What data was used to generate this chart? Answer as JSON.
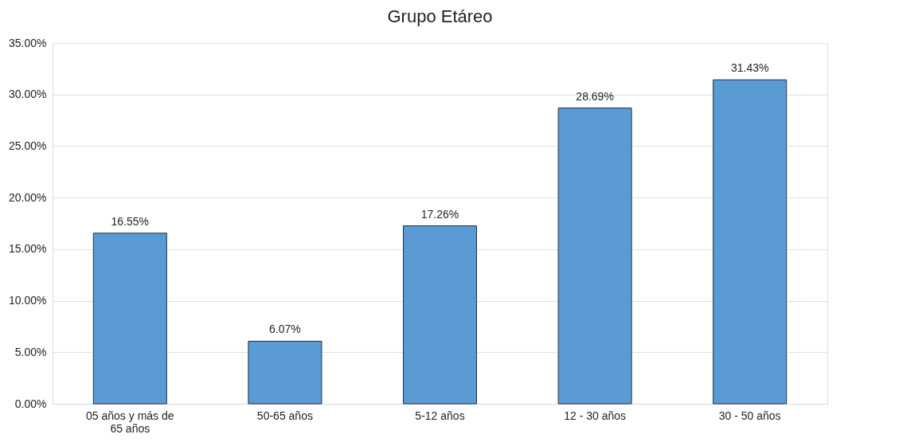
{
  "chart_data": {
    "type": "bar",
    "title": "Grupo Etáreo",
    "categories": [
      "05 años y más  de\n65 años",
      "50-65 años",
      "5-12 años",
      "12 - 30 años",
      "30 - 50 años"
    ],
    "values": [
      16.55,
      6.07,
      17.26,
      28.69,
      31.43
    ],
    "value_labels": [
      "16.55%",
      "6.07%",
      "17.26%",
      "28.69%",
      "31.43%"
    ],
    "color": "#5b9bd5",
    "ylim": [
      0,
      35
    ],
    "yticks": [
      {
        "value": 0,
        "label": "0.00%"
      },
      {
        "value": 5,
        "label": "5.00%"
      },
      {
        "value": 10,
        "label": "10.00%"
      },
      {
        "value": 15,
        "label": "15.00%"
      },
      {
        "value": 20,
        "label": "20.00%"
      },
      {
        "value": 25,
        "label": "25.00%"
      },
      {
        "value": 30,
        "label": "30.00%"
      },
      {
        "value": 35,
        "label": "35.00%"
      }
    ],
    "grid": "y"
  }
}
